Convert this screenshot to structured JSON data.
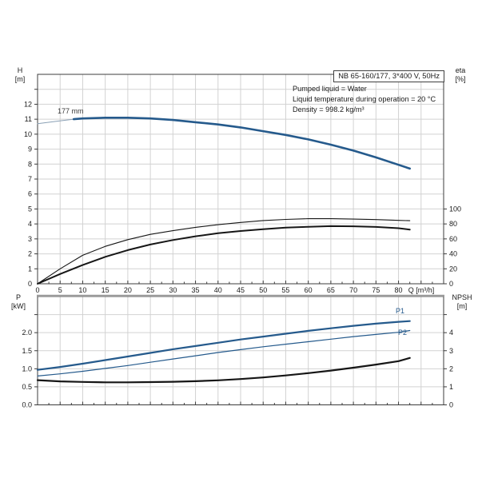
{
  "title_box": {
    "text": "NB 65-160/177, 3*400 V, 50Hz"
  },
  "conditions": {
    "lines": [
      "Pumped liquid = Water",
      "Liquid temperature during operation = 20 °C",
      "Density = 998.2 kg/m³"
    ]
  },
  "axis_titles": {
    "top_left": "H",
    "top_left_unit": "[m]",
    "top_right": "eta",
    "top_right_unit": "[%]",
    "bottom_left": "P",
    "bottom_left_unit": "[kW]",
    "bottom_right": "NPSH",
    "bottom_right_unit": "[m]"
  },
  "curve_labels": {
    "impeller": "177 mm",
    "p1": "P1",
    "p2": "P2"
  },
  "colors": {
    "curve_blue": "#255a8c",
    "curve_blue_thin": "#8aa0b5",
    "curve_black": "#161616",
    "grid": "#d2d2d2",
    "frame": "#3c3c3c",
    "frame_gray": "#9a9a9a",
    "text": "#1a1a1a"
  },
  "chart_data": [
    {
      "type": "line",
      "title": "Head and efficiency vs flow",
      "xlabel": "Q [m³/h]",
      "x": {
        "min": 0,
        "max": 90,
        "grid_step": 5,
        "minor_tick_step": 2.5,
        "labels": [
          [
            0,
            "0"
          ],
          [
            5,
            "5"
          ],
          [
            10,
            "10"
          ],
          [
            15,
            "15"
          ],
          [
            20,
            "20"
          ],
          [
            25,
            "25"
          ],
          [
            30,
            "30"
          ],
          [
            35,
            "35"
          ],
          [
            40,
            "40"
          ],
          [
            45,
            "45"
          ],
          [
            50,
            "50"
          ],
          [
            55,
            "55"
          ],
          [
            60,
            "60"
          ],
          [
            65,
            "65"
          ],
          [
            70,
            "70"
          ],
          [
            75,
            "75"
          ],
          [
            80,
            "80"
          ]
        ],
        "show_labels": true
      },
      "y_left": {
        "name": "H [m]",
        "min": 0,
        "max": 14,
        "grid_step": 1,
        "ticks": [
          1,
          2,
          3,
          4,
          5,
          6,
          7,
          8,
          9,
          10,
          11,
          12,
          13
        ],
        "labels": [
          [
            0,
            "0"
          ],
          [
            1,
            "1"
          ],
          [
            2,
            "2"
          ],
          [
            3,
            "3"
          ],
          [
            4,
            "4"
          ],
          [
            5,
            "5"
          ],
          [
            6,
            "6"
          ],
          [
            7,
            "7"
          ],
          [
            8,
            "8"
          ],
          [
            9,
            "9"
          ],
          [
            10,
            "10"
          ],
          [
            11,
            "11"
          ],
          [
            12,
            "12"
          ]
        ]
      },
      "y_right": {
        "name": "eta [%]",
        "min": 0,
        "max": 280,
        "ticks": [
          0,
          20,
          40,
          60,
          80,
          100
        ],
        "labels": [
          [
            0,
            "0"
          ],
          [
            20,
            "20"
          ],
          [
            40,
            "40"
          ],
          [
            60,
            "60"
          ],
          [
            80,
            "80"
          ],
          [
            100,
            "100"
          ]
        ]
      },
      "series": [
        {
          "name": "head-177mm-low-flow",
          "axis": "left",
          "color": "#8aa0b5",
          "width": 1,
          "x": [
            0,
            4,
            8
          ],
          "y": [
            10.7,
            10.85,
            11.0
          ]
        },
        {
          "name": "head-177mm",
          "axis": "left",
          "color": "#255a8c",
          "width": 2.6,
          "x": [
            8,
            10,
            15,
            20,
            25,
            30,
            35,
            40,
            45,
            50,
            55,
            60,
            65,
            70,
            75,
            80,
            82.5
          ],
          "y": [
            11.0,
            11.05,
            11.1,
            11.1,
            11.05,
            10.95,
            10.8,
            10.65,
            10.45,
            10.2,
            9.95,
            9.65,
            9.3,
            8.9,
            8.45,
            7.95,
            7.7
          ]
        },
        {
          "name": "eta-pump",
          "axis": "right",
          "color": "#161616",
          "width": 1.1,
          "x": [
            0,
            5,
            10,
            15,
            20,
            25,
            30,
            35,
            40,
            45,
            50,
            55,
            60,
            65,
            70,
            75,
            80,
            82.5
          ],
          "y": [
            0,
            20,
            38,
            50,
            59,
            66,
            71,
            75.5,
            79,
            82,
            84.5,
            86,
            87,
            87,
            86.5,
            85.8,
            84.8,
            84.3
          ]
        },
        {
          "name": "eta-pump-plus-motor",
          "axis": "right",
          "color": "#161616",
          "width": 2,
          "x": [
            0,
            5,
            10,
            15,
            20,
            25,
            30,
            35,
            40,
            45,
            50,
            55,
            60,
            65,
            70,
            75,
            80,
            82.5
          ],
          "y": [
            0,
            13,
            25,
            36,
            45,
            52.5,
            58.5,
            63.5,
            67.5,
            70.5,
            73,
            75,
            76.2,
            77,
            76.8,
            76,
            74.3,
            72.5
          ]
        }
      ]
    },
    {
      "type": "line",
      "title": "Power and NPSH vs flow",
      "xlabel": "",
      "x": {
        "min": 0,
        "max": 90,
        "grid_step": 5,
        "minor_tick_step": 2.5,
        "labels": [],
        "show_labels": false
      },
      "y_left": {
        "name": "P [kW]",
        "min": 0,
        "max": 3,
        "grid_step": 0.5,
        "ticks": [
          0,
          0.5,
          1,
          1.5,
          2,
          2.5
        ],
        "labels": [
          [
            0,
            "0.0"
          ],
          [
            0.5,
            "0.5"
          ],
          [
            1,
            "1.0"
          ],
          [
            1.5,
            "1.5"
          ],
          [
            2,
            "2.0"
          ]
        ]
      },
      "y_right": {
        "name": "NPSH [m]",
        "min": 0,
        "max": 6,
        "ticks": [
          0,
          1,
          2,
          3,
          4,
          5
        ],
        "labels": [
          [
            0,
            "0"
          ],
          [
            1,
            "1"
          ],
          [
            2,
            "2"
          ],
          [
            3,
            "3"
          ],
          [
            4,
            "4"
          ]
        ]
      },
      "series": [
        {
          "name": "P1",
          "axis": "left",
          "color": "#255a8c",
          "width": 2.2,
          "x": [
            0,
            5,
            10,
            15,
            20,
            25,
            30,
            35,
            40,
            45,
            50,
            55,
            60,
            65,
            70,
            75,
            80,
            82.5
          ],
          "y": [
            0.97,
            1.05,
            1.14,
            1.24,
            1.34,
            1.44,
            1.54,
            1.63,
            1.72,
            1.81,
            1.89,
            1.97,
            2.05,
            2.12,
            2.19,
            2.25,
            2.3,
            2.32
          ]
        },
        {
          "name": "P2",
          "axis": "left",
          "color": "#255a8c",
          "width": 1.2,
          "x": [
            0,
            5,
            10,
            15,
            20,
            25,
            30,
            35,
            40,
            45,
            50,
            55,
            60,
            65,
            70,
            75,
            80,
            82.5
          ],
          "y": [
            0.8,
            0.86,
            0.93,
            1.01,
            1.09,
            1.18,
            1.27,
            1.36,
            1.45,
            1.53,
            1.61,
            1.68,
            1.75,
            1.82,
            1.89,
            1.95,
            2.01,
            2.06
          ]
        },
        {
          "name": "NPSH",
          "axis": "right",
          "color": "#161616",
          "width": 2.2,
          "x": [
            0,
            5,
            10,
            15,
            20,
            25,
            30,
            35,
            40,
            45,
            50,
            55,
            60,
            65,
            70,
            75,
            80,
            82.5
          ],
          "y": [
            1.37,
            1.3,
            1.27,
            1.25,
            1.25,
            1.26,
            1.28,
            1.31,
            1.36,
            1.43,
            1.52,
            1.63,
            1.76,
            1.9,
            2.06,
            2.23,
            2.42,
            2.6
          ]
        }
      ]
    }
  ]
}
